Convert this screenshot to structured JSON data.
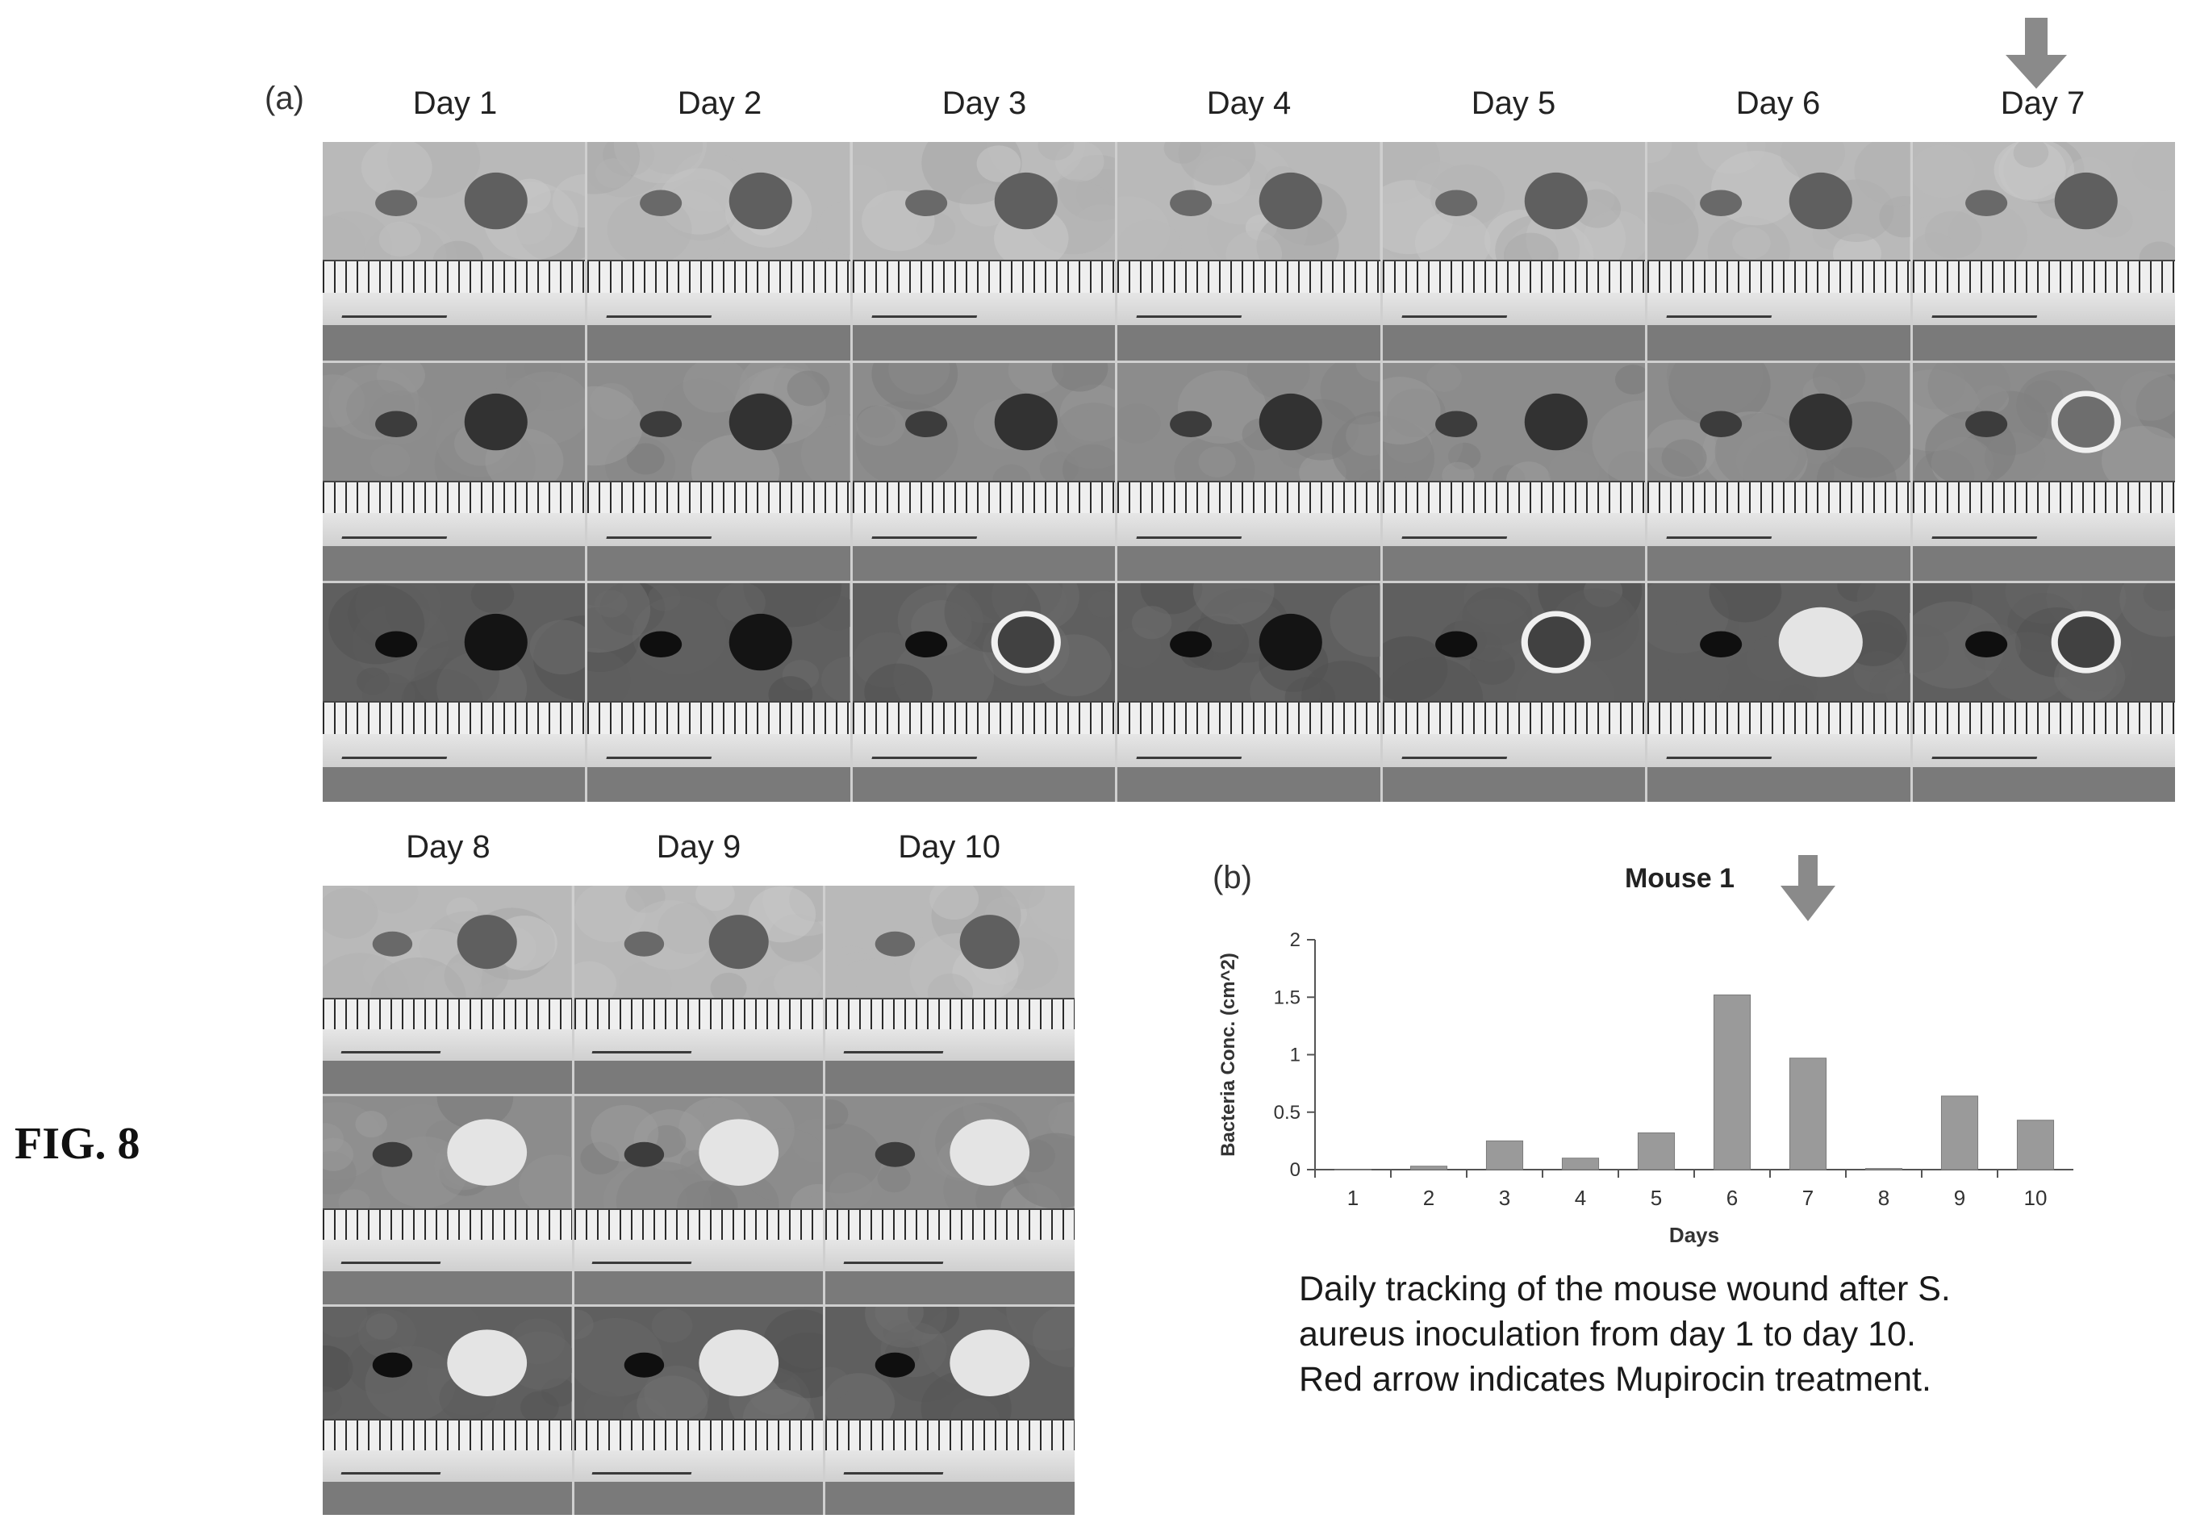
{
  "figure_label": "FIG. 8",
  "panel_a": {
    "letter": "(a)",
    "top_row_days": [
      "Day 1",
      "Day 2",
      "Day 3",
      "Day 4",
      "Day 5",
      "Day 6",
      "Day 7"
    ],
    "bottom_row_days": [
      "Day 8",
      "Day 9",
      "Day 10"
    ],
    "treatment_arrow_day": "Day 7",
    "arrow_color": "#8a8a8a"
  },
  "panel_b": {
    "letter": "(b)"
  },
  "caption": {
    "line1": "Daily tracking of the mouse wound after S.",
    "line2": "aureus inoculation from day 1 to day 10.",
    "line3": "Red arrow indicates Mupirocin treatment."
  },
  "chart_data": {
    "type": "bar",
    "title": "Mouse 1",
    "xlabel": "Days",
    "ylabel": "Bacteria Conc. (cm^2)",
    "categories": [
      "1",
      "2",
      "3",
      "4",
      "5",
      "6",
      "7",
      "8",
      "9",
      "10"
    ],
    "values": [
      0,
      0.03,
      0.25,
      0.1,
      0.32,
      1.52,
      0.97,
      0.01,
      0.64,
      0.43
    ],
    "ylim": [
      0,
      2
    ],
    "yticks": [
      "0",
      "0.5",
      "1",
      "1.5",
      "2"
    ],
    "treatment_day": "7",
    "bar_color": "#9a9a9a",
    "arrow_color": "#8a8a8a",
    "grid": false,
    "legend": "none"
  }
}
